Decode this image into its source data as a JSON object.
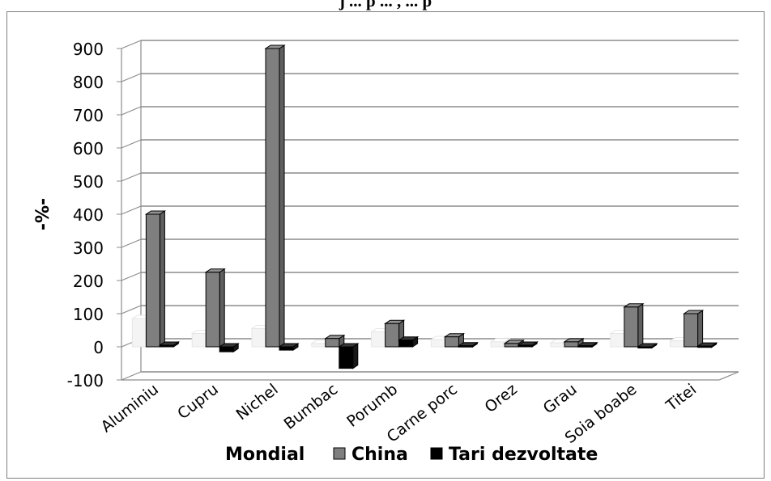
{
  "header_text": "j ... p ... , ... p",
  "chart_data": {
    "type": "bar",
    "title": "",
    "xlabel": "",
    "ylabel": "-%-",
    "ylim": [
      -100,
      900
    ],
    "yticks": [
      -100,
      0,
      100,
      200,
      300,
      400,
      500,
      600,
      700,
      800,
      900
    ],
    "grid": true,
    "three_d": true,
    "legend_position": "bottom",
    "categories": [
      "Aluminiu",
      "Cupru",
      "Nichel",
      "Bumbac",
      "Porumb",
      "Carne porc",
      "Orez",
      "Grau",
      "Soia boabe",
      "Titei"
    ],
    "series": [
      {
        "name": "Mondial",
        "color": "#ffffff",
        "values": [
          85,
          40,
          55,
          10,
          45,
          22,
          15,
          12,
          40,
          18
        ]
      },
      {
        "name": "China",
        "color": "#7f7f7f",
        "values": [
          400,
          225,
          900,
          25,
          70,
          30,
          10,
          15,
          120,
          100
        ]
      },
      {
        "name": "Tari dezvoltate",
        "color": "#000000",
        "values": [
          5,
          -15,
          -10,
          -65,
          20,
          3,
          5,
          3,
          -3,
          2
        ]
      }
    ]
  }
}
